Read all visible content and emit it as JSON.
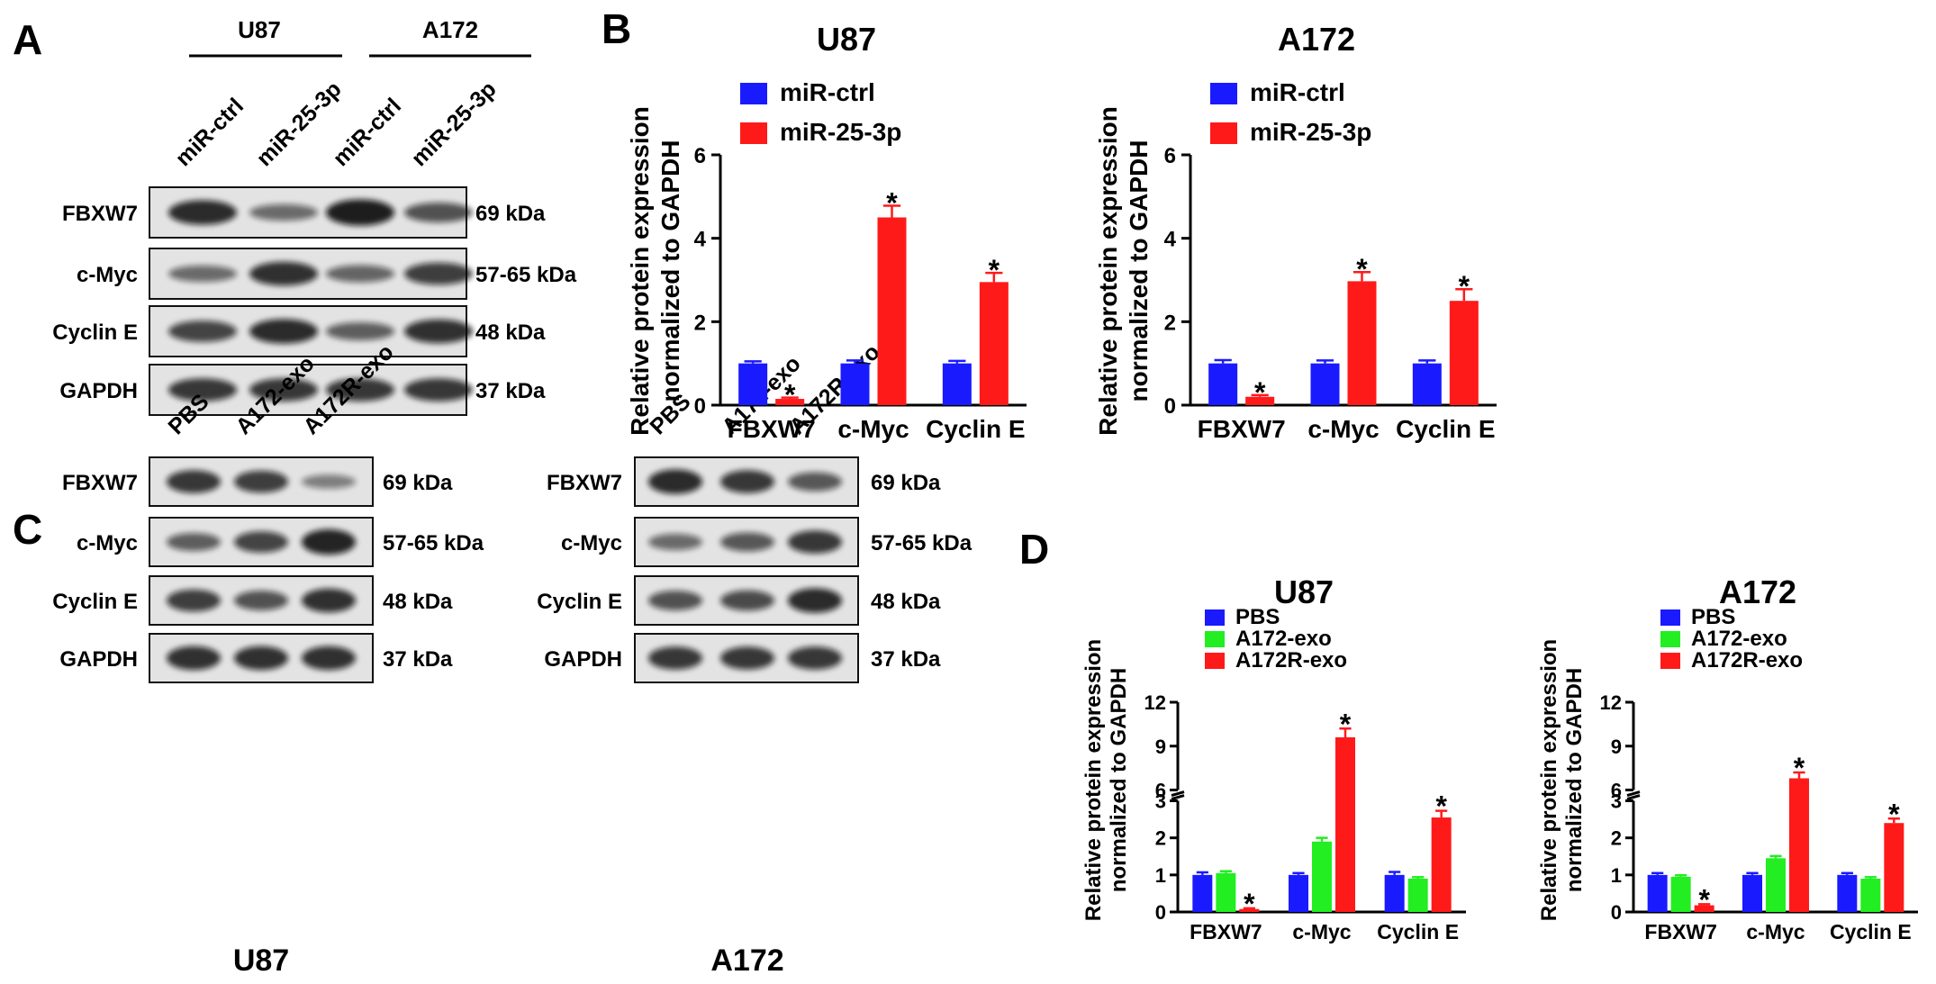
{
  "panels": {
    "A": {
      "letter": "A",
      "groups": [
        "U87",
        "A172"
      ],
      "lanes": [
        "miR-ctrl",
        "miR-25-3p",
        "miR-ctrl",
        "miR-25-3p"
      ],
      "rows": [
        {
          "label": "FBXW7",
          "kda": "69 kDa",
          "intensity": [
            0.85,
            0.35,
            0.95,
            0.55
          ]
        },
        {
          "label": "c-Myc",
          "kda": "57-65 kDa",
          "intensity": [
            0.35,
            0.8,
            0.4,
            0.7
          ]
        },
        {
          "label": "Cyclin E",
          "kda": "48 kDa",
          "intensity": [
            0.65,
            0.85,
            0.45,
            0.8
          ]
        },
        {
          "label": "GAPDH",
          "kda": "37 kDa",
          "intensity": [
            0.75,
            0.75,
            0.75,
            0.75
          ]
        }
      ]
    },
    "B": {
      "letter": "B"
    },
    "C": {
      "letter": "C",
      "lanes": [
        "PBS",
        "A172-exo",
        "A172R-exo"
      ],
      "blots": [
        {
          "caption": "U87",
          "rows": [
            {
              "label": "FBXW7",
              "kda": "69 kDa",
              "intensity": [
                0.75,
                0.7,
                0.2
              ]
            },
            {
              "label": "c-Myc",
              "kda": "57-65 kDa",
              "intensity": [
                0.45,
                0.65,
                0.9
              ]
            },
            {
              "label": "Cyclin E",
              "kda": "48 kDa",
              "intensity": [
                0.7,
                0.55,
                0.8
              ]
            },
            {
              "label": "GAPDH",
              "kda": "37 kDa",
              "intensity": [
                0.8,
                0.8,
                0.8
              ]
            }
          ]
        },
        {
          "caption": "A172",
          "rows": [
            {
              "label": "FBXW7",
              "kda": "69 kDa",
              "intensity": [
                0.85,
                0.75,
                0.5
              ]
            },
            {
              "label": "c-Myc",
              "kda": "57-65 kDa",
              "intensity": [
                0.35,
                0.5,
                0.75
              ]
            },
            {
              "label": "Cyclin E",
              "kda": "48 kDa",
              "intensity": [
                0.55,
                0.6,
                0.85
              ]
            },
            {
              "label": "GAPDH",
              "kda": "37 kDa",
              "intensity": [
                0.75,
                0.75,
                0.75
              ]
            }
          ]
        }
      ]
    },
    "D": {
      "letter": "D"
    }
  },
  "chart_data": [
    {
      "panel": "B",
      "title": "U87",
      "type": "bar",
      "ylabel": "Relative protein expression normalized to GAPDH",
      "ylabel_lines": [
        "Relative protein expression",
        "normalized to GAPDH"
      ],
      "categories": [
        "FBXW7",
        "c-Myc",
        "Cyclin E"
      ],
      "ylim": [
        0,
        6
      ],
      "yticks": [
        0,
        2,
        4,
        6
      ],
      "legend": "top-left",
      "series": [
        {
          "name": "miR-ctrl",
          "color": "#1a1aff",
          "values": [
            1.0,
            1.0,
            1.0
          ],
          "errors": [
            0.05,
            0.07,
            0.06
          ]
        },
        {
          "name": "miR-25-3p",
          "color": "#ff1a1a",
          "values": [
            0.15,
            4.5,
            2.95
          ],
          "errors": [
            0.03,
            0.28,
            0.22
          ]
        }
      ],
      "significance": [
        "*",
        "*",
        "*"
      ]
    },
    {
      "panel": "B",
      "title": "A172",
      "type": "bar",
      "ylabel": "Relative protein expression normalized to GAPDH",
      "ylabel_lines": [
        "Relative protein expression",
        "normalized to GAPDH"
      ],
      "categories": [
        "FBXW7",
        "c-Myc",
        "Cyclin E"
      ],
      "ylim": [
        0,
        6
      ],
      "yticks": [
        0,
        2,
        4,
        6
      ],
      "legend": "top-left",
      "series": [
        {
          "name": "miR-ctrl",
          "color": "#1a1aff",
          "values": [
            1.0,
            1.0,
            1.0
          ],
          "errors": [
            0.08,
            0.07,
            0.07
          ]
        },
        {
          "name": "miR-25-3p",
          "color": "#ff1a1a",
          "values": [
            0.2,
            2.97,
            2.5
          ],
          "errors": [
            0.04,
            0.22,
            0.28
          ]
        }
      ],
      "significance": [
        "*",
        "*",
        "*"
      ]
    },
    {
      "panel": "D",
      "title": "U87",
      "type": "bar",
      "ylabel": "Relative protein expression normalized to GAPDH",
      "ylabel_lines": [
        "Relative protein expression",
        "normalized to GAPDH"
      ],
      "categories": [
        "FBXW7",
        "c-Myc",
        "Cyclin E"
      ],
      "y_axis_break": {
        "lower": [
          0,
          3
        ],
        "upper": [
          6,
          12
        ]
      },
      "yticks_lower": [
        0,
        1,
        2,
        3
      ],
      "yticks_upper": [
        6,
        9,
        12
      ],
      "legend": "top-left",
      "series": [
        {
          "name": "PBS",
          "color": "#1a1aff",
          "values": [
            1.0,
            1.0,
            1.0
          ],
          "errors": [
            0.07,
            0.05,
            0.08
          ]
        },
        {
          "name": "A172-exo",
          "color": "#22ee22",
          "values": [
            1.05,
            1.9,
            0.9
          ],
          "errors": [
            0.05,
            0.1,
            0.04
          ]
        },
        {
          "name": "A172R-exo",
          "color": "#ff1a1a",
          "values": [
            0.08,
            9.6,
            2.55
          ],
          "errors": [
            0.02,
            0.6,
            0.18
          ]
        }
      ],
      "significance": [
        "*",
        "*",
        "*"
      ]
    },
    {
      "panel": "D",
      "title": "A172",
      "type": "bar",
      "ylabel": "Relative protein expression normalized to GAPDH",
      "ylabel_lines": [
        "Relative protein expression",
        "normalized to GAPDH"
      ],
      "categories": [
        "FBXW7",
        "c-Myc",
        "Cyclin E"
      ],
      "y_axis_break": {
        "lower": [
          0,
          3
        ],
        "upper": [
          6,
          12
        ]
      },
      "yticks_lower": [
        0,
        1,
        2,
        3
      ],
      "yticks_upper": [
        6,
        9,
        12
      ],
      "legend": "top-left",
      "series": [
        {
          "name": "PBS",
          "color": "#1a1aff",
          "values": [
            1.0,
            1.0,
            1.0
          ],
          "errors": [
            0.05,
            0.05,
            0.05
          ]
        },
        {
          "name": "A172-exo",
          "color": "#22ee22",
          "values": [
            0.95,
            1.45,
            0.9
          ],
          "errors": [
            0.04,
            0.06,
            0.04
          ]
        },
        {
          "name": "A172R-exo",
          "color": "#ff1a1a",
          "values": [
            0.18,
            6.8,
            2.4
          ],
          "errors": [
            0.03,
            0.4,
            0.12
          ]
        }
      ],
      "significance": [
        "*",
        "*",
        "*"
      ]
    }
  ]
}
